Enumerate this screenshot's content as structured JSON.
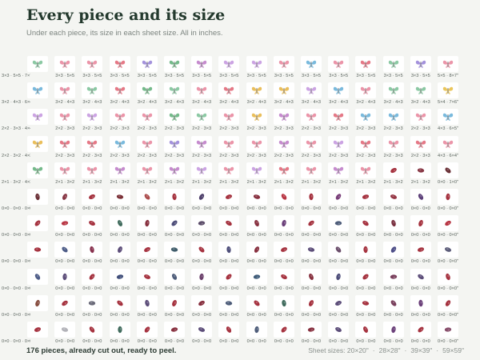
{
  "title": "Every piece and its size",
  "subtitle": "Under each piece, its size in each sheet size. All in inches.",
  "footer": {
    "summary": "176 pieces, already cut out, ready to peel.",
    "sheet_sizes_label": "Sheet sizes:",
    "sheet_sizes": [
      "20×20\"",
      "28×28\"",
      "39×39\"",
      "59×59\""
    ],
    "separator": "·"
  },
  "grid": {
    "columns": 16,
    "rows": [
      {
        "kind": "butterfly",
        "first_label": "3×3 · 5×5 · 7×7",
        "other_label": "3×3 · 5×5",
        "last_label": "5×5 · 8×7\"",
        "colors": [
          "#7fc39a",
          "#e98aa0",
          "#e98aa0",
          "#e26a7a",
          "#9a86d8",
          "#66b37e",
          "#c07fc9",
          "#c79ae0",
          "#c79ae0",
          "#e98aa0",
          "#6bb2d9",
          "#e98aa0",
          "#e26a7a",
          "#7fc39a",
          "#9a86d8",
          "#e98aa0"
        ]
      },
      {
        "kind": "butterfly",
        "first_label": "3×2 · 4×3 · 6×4",
        "other_label": "3×2 · 4×3",
        "last_label": "5×4 · 7×6\"",
        "colors": [
          "#6bb2d9",
          "#e98aa0",
          "#7fc39a",
          "#e26a7a",
          "#66b37e",
          "#7fc39a",
          "#e98aa0",
          "#e26a7a",
          "#e8b84a",
          "#e8b84a",
          "#c79ae0",
          "#6bb2d9",
          "#e98aa0",
          "#7fc39a",
          "#7fc39a",
          "#e8c04a"
        ]
      },
      {
        "kind": "butterfly",
        "first_label": "2×2 · 3×3 · 4×4",
        "other_label": "2×2 · 3×3",
        "last_label": "4×3 · 6×5\"",
        "colors": [
          "#c79ae0",
          "#e98aa0",
          "#c79ae0",
          "#e98aa0",
          "#e98aa0",
          "#66b37e",
          "#7fc39a",
          "#e98aa0",
          "#e8b84a",
          "#c07fc9",
          "#e98aa0",
          "#e26a7a",
          "#6bb2d9",
          "#6bb2d9",
          "#e98aa0",
          "#6bb2d9"
        ]
      },
      {
        "kind": "butterfly",
        "first_label": "2×2 · 3×2 · 4×3",
        "other_label": "2×2 · 3×3",
        "last_label": "4×3 · 6×4\"",
        "colors": [
          "#e8b84a",
          "#e26a7a",
          "#e26a7a",
          "#6bb2d9",
          "#e98aa0",
          "#9a86d8",
          "#c07fc9",
          "#e98aa0",
          "#e98aa0",
          "#c07fc9",
          "#e98aa0",
          "#c79ae0",
          "#e26a7a",
          "#e98aa0",
          "#e26a7a",
          "#e98aa0"
        ]
      },
      {
        "kind": "butterfly_mixed",
        "first_label": "2×1 · 3×2 · 4×3",
        "other_label": "2×1 · 3×2",
        "last_label": "0×0 · 1×0\"",
        "colors": [
          "#66b37e",
          "#e98aa0",
          "#e98aa0",
          "#c07fc9",
          "#e98aa0",
          "#c07fc9",
          "#c79ae0",
          "#e98aa0",
          "#c79ae0",
          "#e26a7a",
          "#e98aa0",
          "#c07fc9",
          "#e98aa0",
          "#9b1c2a",
          "#7a2030",
          "#5a1a20"
        ]
      },
      {
        "kind": "blob",
        "first_label": "0×0 · 0×0 · 0×0",
        "other_label": "0×0 · 0×0",
        "last_label": "0×0 · 0×0\"",
        "colors": [
          "#5a1a20",
          "#7a2030",
          "#9b1c2a",
          "#6b1820",
          "#a33a3a",
          "#9b1c2a",
          "#3a2a5a",
          "#9b1c2a",
          "#7a1a2a",
          "#b02030",
          "#9b1c2a",
          "#6a2a6a",
          "#9b1c2a",
          "#8a2030",
          "#4a2a6a",
          "#9b1c2a"
        ]
      },
      {
        "kind": "blob",
        "first_label": "0×0 · 0×0 · 0×0",
        "other_label": "0×0 · 0×0",
        "last_label": "0×0 · 0×0\"",
        "colors": [
          "#9b1c2a",
          "#b02030",
          "#9b1c2a",
          "#2a5a4a",
          "#7a1a2a",
          "#3a3a6a",
          "#4a3a5a",
          "#9b1c2a",
          "#7a1a2a",
          "#5a2a6a",
          "#9b1c2a",
          "#3a4a6a",
          "#9b1c2a",
          "#6a1a2a",
          "#9b1c2a",
          "#b02030"
        ]
      },
      {
        "kind": "blob",
        "first_label": "0×0 · 0×0 · 0×0",
        "other_label": "0×0 · 0×0",
        "last_label": "0×0 · 0×0\"",
        "colors": [
          "#9b1c2a",
          "#3a4a7a",
          "#7a1a3a",
          "#4a3a6a",
          "#9b1c2a",
          "#2a4a5a",
          "#9b1c2a",
          "#3a3a6a",
          "#7a1a2a",
          "#9b1c2a",
          "#4a3a6a",
          "#5a3a5a",
          "#9b1c2a",
          "#3a3a7a",
          "#9b1c2a",
          "#4a4a6a"
        ]
      },
      {
        "kind": "blob",
        "first_label": "0×0 · 0×0 · 0×0",
        "other_label": "0×0 · 0×0",
        "last_label": "0×0 · 0×0\"",
        "colors": [
          "#3a4a7a",
          "#4a3a6a",
          "#9b1c2a",
          "#2a3a6a",
          "#9b1c2a",
          "#3a4a6a",
          "#5a2a5a",
          "#9b1c2a",
          "#2a4a6a",
          "#9b1c2a",
          "#7a1a2a",
          "#3a3a6a",
          "#9b1c2a",
          "#6a2a4a",
          "#4a3a6a",
          "#9b1c2a"
        ]
      },
      {
        "kind": "blob",
        "first_label": "0×0 · 0×0 · 0×0",
        "other_label": "0×0 · 0×0",
        "last_label": "0×0 · 0×0\"",
        "colors": [
          "#7a3a2a",
          "#9b1c2a",
          "#5a5a6a",
          "#9b1c2a",
          "#4a3a6a",
          "#9b1c2a",
          "#7a1a2a",
          "#3a4a6a",
          "#9b1c2a",
          "#2a5a4a",
          "#9b1c2a",
          "#4a3a6a",
          "#9b1c2a",
          "#6a2a4a",
          "#5a2a6a",
          "#9b1c2a"
        ]
      },
      {
        "kind": "blob",
        "first_label": "0×0 · 0×0 · 0×0",
        "other_label": "0×0 · 0×0",
        "last_label": "0×0 · 0×0\"",
        "colors": [
          "#9b1c2a",
          "#aaaab0",
          "#9b1c2a",
          "#2a5a4a",
          "#9b1c2a",
          "#7a1a2a",
          "#4a3a6a",
          "#9b1c2a",
          "#3a4a6a",
          "#9b1c2a",
          "#7a1a2a",
          "#4a3a6a",
          "#9b1c2a",
          "#5a2a6a",
          "#9b1c2a",
          "#7a3a5a"
        ]
      }
    ]
  }
}
